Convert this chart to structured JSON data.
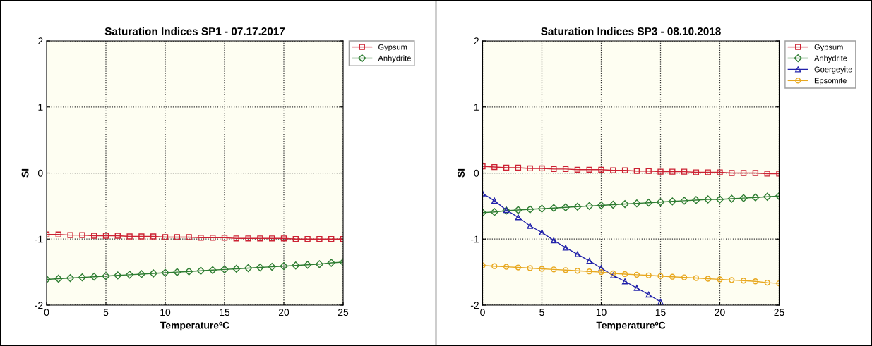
{
  "chart_data": [
    {
      "type": "line",
      "title": "Saturation Indices SP1 - 07.17.2017",
      "xlabel": "TemperatureºC",
      "ylabel": "SI",
      "x": [
        0,
        1,
        2,
        3,
        4,
        5,
        6,
        7,
        8,
        9,
        10,
        11,
        12,
        13,
        14,
        15,
        16,
        17,
        18,
        19,
        20,
        21,
        22,
        23,
        24,
        25
      ],
      "xlim": [
        0,
        25
      ],
      "xticks": [
        0,
        5,
        10,
        15,
        20,
        25
      ],
      "ylim": [
        -2,
        2
      ],
      "yticks": [
        -2,
        -1,
        0,
        1,
        2
      ],
      "grid": true,
      "legend": "top right",
      "line_style": "solid",
      "series": [
        {
          "name": "Gypsum",
          "color": "#cc2233",
          "marker": "square",
          "values": [
            -0.93,
            -0.93,
            -0.94,
            -0.94,
            -0.95,
            -0.95,
            -0.95,
            -0.96,
            -0.96,
            -0.96,
            -0.97,
            -0.97,
            -0.97,
            -0.98,
            -0.98,
            -0.98,
            -0.99,
            -0.99,
            -0.99,
            -0.99,
            -0.99,
            -1.0,
            -1.0,
            -1.0,
            -1.0,
            -1.0
          ]
        },
        {
          "name": "Anhydrite",
          "color": "#2e7d32",
          "marker": "diamond",
          "values": [
            -1.61,
            -1.6,
            -1.59,
            -1.58,
            -1.57,
            -1.56,
            -1.55,
            -1.54,
            -1.53,
            -1.52,
            -1.51,
            -1.5,
            -1.49,
            -1.48,
            -1.47,
            -1.46,
            -1.45,
            -1.44,
            -1.43,
            -1.42,
            -1.41,
            -1.4,
            -1.39,
            -1.38,
            -1.36,
            -1.35
          ]
        }
      ]
    },
    {
      "type": "line",
      "title": "Saturation Indices SP3 - 08.10.2018",
      "xlabel": "TemperatureºC",
      "ylabel": "SI",
      "x": [
        0,
        1,
        2,
        3,
        4,
        5,
        6,
        7,
        8,
        9,
        10,
        11,
        12,
        13,
        14,
        15,
        16,
        17,
        18,
        19,
        20,
        21,
        22,
        23,
        24,
        25
      ],
      "xlim": [
        0,
        25
      ],
      "xticks": [
        0,
        5,
        10,
        15,
        20,
        25
      ],
      "ylim": [
        -2,
        2
      ],
      "yticks": [
        -2,
        -1,
        0,
        1,
        2
      ],
      "grid": true,
      "legend": "top right",
      "line_style": "solid",
      "series": [
        {
          "name": "Gypsum",
          "color": "#cc2233",
          "marker": "square",
          "values": [
            0.1,
            0.09,
            0.08,
            0.08,
            0.07,
            0.07,
            0.06,
            0.06,
            0.05,
            0.05,
            0.05,
            0.04,
            0.04,
            0.03,
            0.03,
            0.02,
            0.02,
            0.02,
            0.01,
            0.01,
            0.01,
            0.0,
            0.0,
            0.0,
            -0.01,
            -0.01
          ]
        },
        {
          "name": "Anhydrite",
          "color": "#2e7d32",
          "marker": "diamond",
          "values": [
            -0.6,
            -0.59,
            -0.57,
            -0.56,
            -0.55,
            -0.54,
            -0.53,
            -0.52,
            -0.51,
            -0.5,
            -0.49,
            -0.48,
            -0.47,
            -0.46,
            -0.45,
            -0.44,
            -0.43,
            -0.42,
            -0.41,
            -0.4,
            -0.4,
            -0.39,
            -0.38,
            -0.37,
            -0.36,
            -0.35
          ]
        },
        {
          "name": "Goergeyite",
          "color": "#2222aa",
          "marker": "triangle",
          "values": [
            -0.31,
            -0.42,
            -0.56,
            -0.67,
            -0.8,
            -0.9,
            -1.02,
            -1.13,
            -1.23,
            -1.33,
            -1.44,
            -1.55,
            -1.64,
            -1.74,
            -1.84,
            -1.95,
            null,
            null,
            null,
            null,
            null,
            null,
            null,
            null,
            null,
            null
          ]
        },
        {
          "name": "Epsomite",
          "color": "#e8a820",
          "marker": "circle",
          "values": [
            -1.4,
            -1.41,
            -1.42,
            -1.43,
            -1.44,
            -1.45,
            -1.46,
            -1.47,
            -1.48,
            -1.49,
            -1.5,
            -1.52,
            -1.53,
            -1.54,
            -1.55,
            -1.56,
            -1.57,
            -1.58,
            -1.59,
            -1.6,
            -1.61,
            -1.62,
            -1.63,
            -1.64,
            -1.66,
            -1.67
          ]
        }
      ]
    }
  ]
}
